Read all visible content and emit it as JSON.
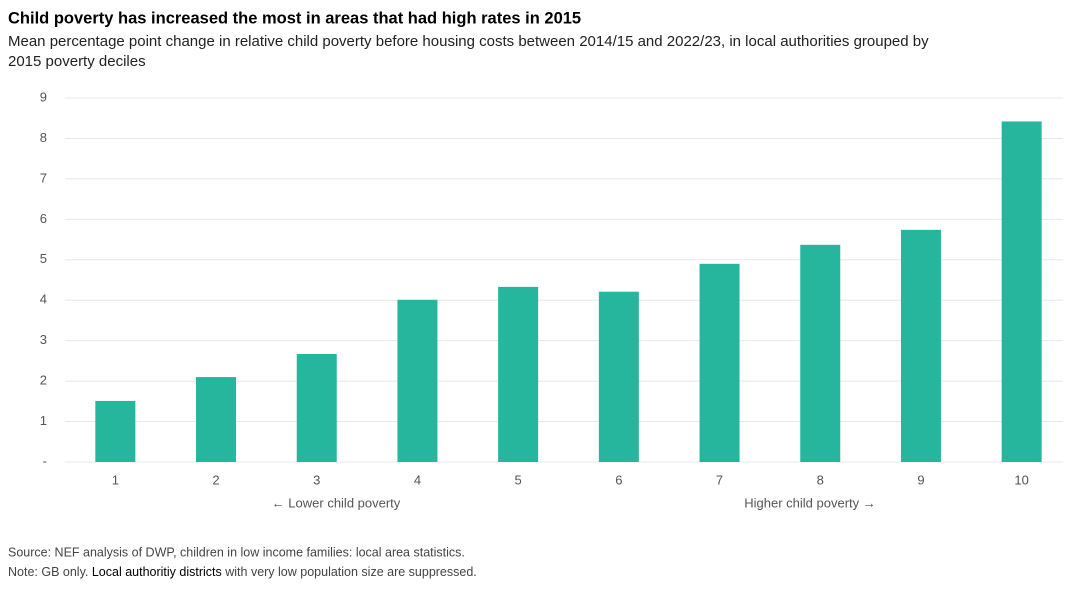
{
  "chart_data": {
    "type": "bar",
    "title": "Child poverty has increased the most in areas that had high rates in 2015",
    "subtitle": [
      "Mean percentage point change in relative child poverty before housing costs between 2014/15 and 2022/23, in local authorities grouped by",
      "2015 poverty deciles"
    ],
    "categories": [
      "1",
      "2",
      "3",
      "4",
      "5",
      "6",
      "7",
      "8",
      "9",
      "10"
    ],
    "values": [
      1.51,
      2.1,
      2.67,
      4.01,
      4.33,
      4.21,
      4.9,
      5.37,
      5.74,
      8.42
    ],
    "color": "#26b59d",
    "ylim": [
      0,
      9
    ],
    "yticks": [
      {
        "value": 0,
        "label": "-"
      },
      1,
      2,
      3,
      4,
      5,
      6,
      7,
      8,
      9
    ],
    "grid": true,
    "annotations": [
      "← Lower child poverty",
      "Higher child poverty →"
    ],
    "source": "Source: NEF analysis of DWP, children in low income families: local area statistics.",
    "note": [
      "Note: GB only. ",
      "Local authoritiy districts",
      " with very low population size are suppressed."
    ]
  }
}
